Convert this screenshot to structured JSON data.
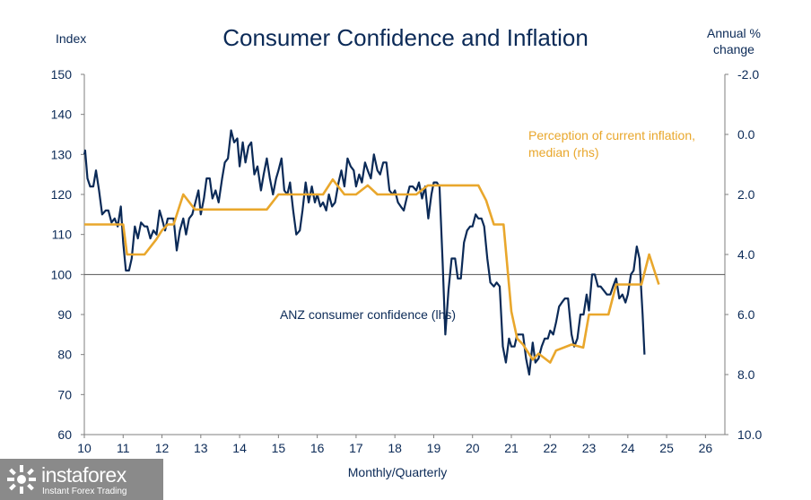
{
  "header": {
    "title": "Consumer Confidence and Inflation",
    "left_unit": "Index",
    "right_unit_line1": "Annual %",
    "right_unit_line2": "change"
  },
  "watermark": {
    "name": "instaforex",
    "tagline": "Instant Forex Trading",
    "icon": "instaforex-logo-icon"
  },
  "chart_data": {
    "type": "line",
    "title": "Consumer Confidence and Inflation",
    "xlabel": "Monthly/Quarterly",
    "ylabel_left": "Index",
    "ylabel_right": "Annual % change",
    "xlim": [
      10,
      26.5
    ],
    "ylim_left": [
      60,
      150
    ],
    "ylim_right": [
      10.0,
      -2.0
    ],
    "right_axis_inverted": true,
    "x_ticks": [
      "10",
      "11",
      "12",
      "13",
      "14",
      "15",
      "16",
      "17",
      "18",
      "19",
      "20",
      "21",
      "22",
      "23",
      "24",
      "25",
      "26"
    ],
    "y_ticks_left": [
      "150",
      "140",
      "130",
      "120",
      "110",
      "100",
      "90",
      "80",
      "70",
      "60"
    ],
    "y_ticks_right": [
      "-2.0",
      "0.0",
      "2.0",
      "4.0",
      "6.0",
      "8.0",
      "10.0"
    ],
    "reference_line_left": 100,
    "grid": false,
    "series": [
      {
        "name": "ANZ consumer confidence (lhs)",
        "axis": "left",
        "color": "#0b2a57",
        "label_position": "center-right",
        "points": [
          [
            10.0,
            130
          ],
          [
            10.02,
            131
          ],
          [
            10.08,
            124
          ],
          [
            10.15,
            122
          ],
          [
            10.23,
            122
          ],
          [
            10.3,
            126
          ],
          [
            10.38,
            121
          ],
          [
            10.46,
            115
          ],
          [
            10.55,
            116
          ],
          [
            10.62,
            116
          ],
          [
            10.7,
            113
          ],
          [
            10.78,
            114
          ],
          [
            10.86,
            112
          ],
          [
            10.94,
            117
          ],
          [
            11.0,
            108
          ],
          [
            11.07,
            101
          ],
          [
            11.15,
            101
          ],
          [
            11.22,
            104
          ],
          [
            11.3,
            112
          ],
          [
            11.38,
            109
          ],
          [
            11.46,
            113
          ],
          [
            11.55,
            112
          ],
          [
            11.62,
            112
          ],
          [
            11.7,
            109
          ],
          [
            11.78,
            111
          ],
          [
            11.86,
            110
          ],
          [
            11.94,
            116
          ],
          [
            12.0,
            114
          ],
          [
            12.08,
            111
          ],
          [
            12.15,
            114
          ],
          [
            12.23,
            114
          ],
          [
            12.3,
            114
          ],
          [
            12.38,
            106
          ],
          [
            12.46,
            111
          ],
          [
            12.55,
            114
          ],
          [
            12.62,
            110
          ],
          [
            12.7,
            114
          ],
          [
            12.78,
            115
          ],
          [
            12.86,
            118
          ],
          [
            12.94,
            121
          ],
          [
            13.0,
            115
          ],
          [
            13.08,
            119
          ],
          [
            13.15,
            124
          ],
          [
            13.23,
            124
          ],
          [
            13.3,
            119
          ],
          [
            13.38,
            121
          ],
          [
            13.46,
            118
          ],
          [
            13.55,
            124
          ],
          [
            13.62,
            128
          ],
          [
            13.7,
            129
          ],
          [
            13.78,
            136
          ],
          [
            13.86,
            133
          ],
          [
            13.94,
            134
          ],
          [
            14.0,
            127
          ],
          [
            14.08,
            133
          ],
          [
            14.15,
            128
          ],
          [
            14.23,
            132
          ],
          [
            14.3,
            133
          ],
          [
            14.38,
            125
          ],
          [
            14.46,
            127
          ],
          [
            14.55,
            121
          ],
          [
            14.62,
            125
          ],
          [
            14.7,
            129
          ],
          [
            14.78,
            124
          ],
          [
            14.86,
            120
          ],
          [
            14.94,
            124
          ],
          [
            15.0,
            126
          ],
          [
            15.08,
            129
          ],
          [
            15.15,
            121
          ],
          [
            15.23,
            120
          ],
          [
            15.3,
            123
          ],
          [
            15.38,
            116
          ],
          [
            15.46,
            110
          ],
          [
            15.55,
            111
          ],
          [
            15.62,
            116
          ],
          [
            15.7,
            123
          ],
          [
            15.78,
            118
          ],
          [
            15.86,
            122
          ],
          [
            15.94,
            118
          ],
          [
            16.0,
            120
          ],
          [
            16.08,
            117
          ],
          [
            16.15,
            118
          ],
          [
            16.23,
            116
          ],
          [
            16.3,
            120
          ],
          [
            16.38,
            117
          ],
          [
            16.46,
            118
          ],
          [
            16.55,
            123
          ],
          [
            16.62,
            126
          ],
          [
            16.7,
            122
          ],
          [
            16.78,
            129
          ],
          [
            16.86,
            127
          ],
          [
            16.94,
            126
          ],
          [
            17.0,
            122
          ],
          [
            17.08,
            125
          ],
          [
            17.15,
            123
          ],
          [
            17.23,
            128
          ],
          [
            17.3,
            126
          ],
          [
            17.38,
            124
          ],
          [
            17.46,
            130
          ],
          [
            17.55,
            126
          ],
          [
            17.62,
            125
          ],
          [
            17.7,
            128
          ],
          [
            17.78,
            128
          ],
          [
            17.86,
            121
          ],
          [
            17.94,
            120
          ],
          [
            18.0,
            121
          ],
          [
            18.08,
            118
          ],
          [
            18.15,
            117
          ],
          [
            18.23,
            116
          ],
          [
            18.3,
            119
          ],
          [
            18.38,
            122
          ],
          [
            18.46,
            122
          ],
          [
            18.55,
            121
          ],
          [
            18.62,
            123
          ],
          [
            18.7,
            119
          ],
          [
            18.78,
            122
          ],
          [
            18.86,
            114
          ],
          [
            18.94,
            120
          ],
          [
            19.0,
            123
          ],
          [
            19.08,
            123
          ],
          [
            19.15,
            122
          ],
          [
            19.23,
            103
          ],
          [
            19.3,
            85
          ],
          [
            19.38,
            96
          ],
          [
            19.46,
            104
          ],
          [
            19.55,
            104
          ],
          [
            19.62,
            99
          ],
          [
            19.7,
            99
          ],
          [
            19.78,
            108
          ],
          [
            19.86,
            111
          ],
          [
            19.94,
            112
          ],
          [
            20.0,
            112
          ],
          [
            20.08,
            115
          ],
          [
            20.15,
            114
          ],
          [
            20.23,
            114
          ],
          [
            20.3,
            112
          ],
          [
            20.38,
            104
          ],
          [
            20.46,
            98
          ],
          [
            20.55,
            97
          ],
          [
            20.62,
            98
          ],
          [
            20.7,
            97
          ],
          [
            20.78,
            82
          ],
          [
            20.86,
            78
          ],
          [
            20.94,
            84
          ],
          [
            21.0,
            82
          ],
          [
            21.08,
            82
          ],
          [
            21.15,
            85
          ],
          [
            21.23,
            85
          ],
          [
            21.3,
            85
          ],
          [
            21.38,
            79
          ],
          [
            21.46,
            75
          ],
          [
            21.55,
            83
          ],
          [
            21.62,
            78
          ],
          [
            21.7,
            79
          ],
          [
            21.78,
            82
          ],
          [
            21.86,
            84
          ],
          [
            21.94,
            84
          ],
          [
            22.0,
            86
          ],
          [
            22.08,
            85
          ],
          [
            22.15,
            88
          ],
          [
            22.23,
            92
          ],
          [
            22.3,
            93
          ],
          [
            22.38,
            94
          ],
          [
            22.46,
            94
          ],
          [
            22.55,
            85
          ],
          [
            22.62,
            82
          ],
          [
            22.7,
            84
          ],
          [
            22.78,
            90
          ],
          [
            22.86,
            90
          ],
          [
            22.94,
            95
          ],
          [
            23.0,
            91
          ],
          [
            23.08,
            100
          ],
          [
            23.15,
            100
          ],
          [
            23.23,
            97
          ],
          [
            23.3,
            97
          ],
          [
            23.38,
            96
          ],
          [
            23.46,
            95
          ],
          [
            23.55,
            95
          ],
          [
            23.62,
            97
          ],
          [
            23.7,
            99
          ],
          [
            23.78,
            94
          ],
          [
            23.86,
            95
          ],
          [
            23.94,
            93
          ],
          [
            24.0,
            95
          ],
          [
            24.08,
            100
          ],
          [
            24.15,
            101
          ],
          [
            24.23,
            107
          ],
          [
            24.3,
            104
          ],
          [
            24.38,
            90
          ],
          [
            24.43,
            80
          ]
        ]
      },
      {
        "name": "Perception of current inflation, median (rhs)",
        "axis": "right",
        "color": "#e9a72c",
        "label_position": "upper-right",
        "points": [
          [
            10.0,
            3.0
          ],
          [
            11.0,
            3.0
          ],
          [
            11.1,
            4.0
          ],
          [
            11.55,
            4.0
          ],
          [
            11.85,
            3.5
          ],
          [
            12.0,
            3.2
          ],
          [
            12.15,
            3.0
          ],
          [
            12.3,
            3.0
          ],
          [
            12.55,
            2.0
          ],
          [
            12.85,
            2.5
          ],
          [
            14.7,
            2.5
          ],
          [
            15.0,
            2.0
          ],
          [
            16.15,
            2.0
          ],
          [
            16.4,
            1.5
          ],
          [
            16.7,
            2.0
          ],
          [
            17.0,
            2.0
          ],
          [
            17.3,
            1.7
          ],
          [
            17.55,
            2.0
          ],
          [
            18.55,
            2.0
          ],
          [
            18.85,
            1.7
          ],
          [
            20.15,
            1.7
          ],
          [
            20.35,
            2.2
          ],
          [
            20.55,
            3.0
          ],
          [
            20.8,
            3.0
          ],
          [
            21.0,
            5.9
          ],
          [
            21.15,
            6.8
          ],
          [
            21.3,
            7.0
          ],
          [
            21.55,
            7.5
          ],
          [
            21.7,
            7.3
          ],
          [
            22.0,
            7.6
          ],
          [
            22.15,
            7.2
          ],
          [
            22.55,
            7.0
          ],
          [
            22.85,
            7.1
          ],
          [
            23.0,
            6.0
          ],
          [
            23.5,
            6.0
          ],
          [
            23.7,
            5.0
          ],
          [
            24.35,
            5.0
          ],
          [
            24.55,
            4.0
          ],
          [
            24.8,
            5.0
          ]
        ]
      }
    ]
  }
}
